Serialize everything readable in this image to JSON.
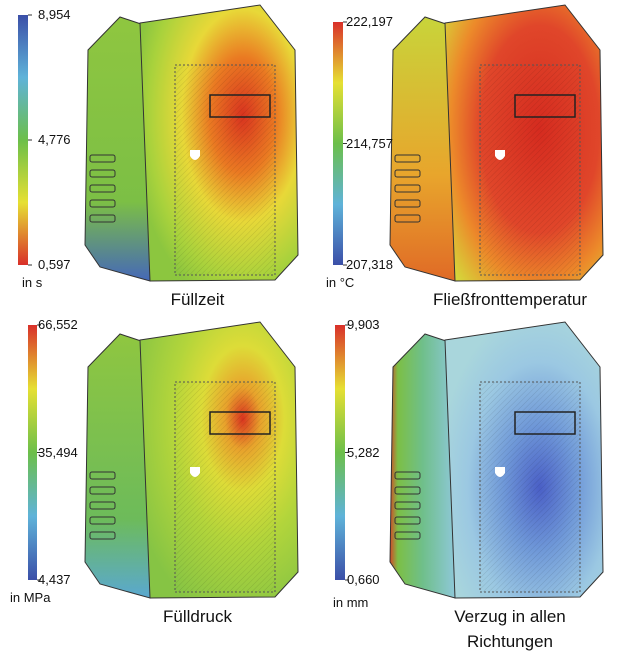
{
  "panels": [
    {
      "caption": "Füllzeit",
      "unit": "in s",
      "scale": [
        "8,954",
        "4,776",
        "0,597"
      ]
    },
    {
      "caption": "Fließfronttemperatur",
      "unit": "in °C",
      "scale": [
        "222,197",
        "214,757",
        "207,318"
      ]
    },
    {
      "caption": "Fülldruck",
      "unit": "in MPa",
      "scale": [
        "66,552",
        "35,494",
        "4,437"
      ]
    },
    {
      "caption": "Verzug in allen Richtungen",
      "unit": "in mm",
      "scale": [
        "9,903",
        "5,282",
        "0,660"
      ]
    }
  ]
}
